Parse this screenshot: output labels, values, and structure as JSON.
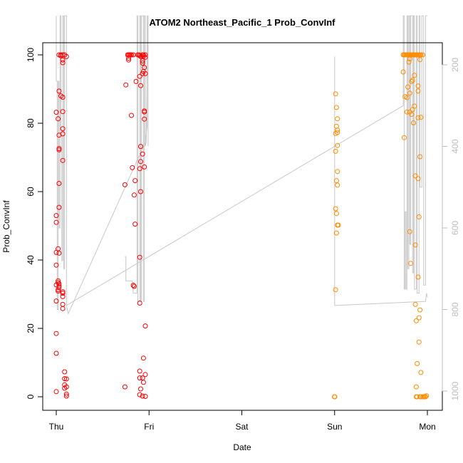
{
  "chart_data": {
    "type": "scatter",
    "title": "ATOM2 Northeast_Pacific_1 Prob_ConvInf",
    "xlabel": "Date",
    "ylabel": "Prob_ConvInf",
    "x_unit": "days since Thu 00:00",
    "xlim": [
      0,
      4
    ],
    "ylim": [
      0,
      100
    ],
    "x_ticks": [
      {
        "value": 0,
        "label": "Thu"
      },
      {
        "value": 1,
        "label": "Fri"
      },
      {
        "value": 2,
        "label": "Sat"
      },
      {
        "value": 3,
        "label": "Sun"
      },
      {
        "value": 4,
        "label": "Mon"
      }
    ],
    "y_ticks": [
      0,
      20,
      40,
      60,
      80,
      100
    ],
    "y2_ticks": [
      200,
      400,
      600,
      800,
      1000
    ],
    "y2lim": [
      1000,
      200
    ],
    "colors": {
      "red": "#ff0000",
      "orange": "#ff8c00",
      "line": "#c8c8c8",
      "axis": "#000000",
      "right_axis": "#bdbdbd"
    },
    "series": [
      {
        "name": "Thu",
        "color": "#ff0000",
        "points": [
          [
            0.0,
            83.2
          ],
          [
            0.0,
            53
          ],
          [
            0.0,
            51
          ],
          [
            0.0,
            42.2
          ],
          [
            0.0,
            38.5
          ],
          [
            0.0,
            32.7
          ],
          [
            0.0,
            28
          ],
          [
            0.0,
            18.5
          ],
          [
            0.0,
            12.7
          ],
          [
            0.0,
            1.5
          ],
          [
            0.02,
            81.3
          ],
          [
            0.02,
            43.3
          ],
          [
            0.02,
            33.9
          ],
          [
            0.02,
            33.4
          ],
          [
            0.02,
            31.3
          ],
          [
            0.02,
            30.9
          ],
          [
            0.03,
            100
          ],
          [
            0.03,
            89.4
          ],
          [
            0.03,
            76.5
          ],
          [
            0.03,
            72.6
          ],
          [
            0.03,
            72.2
          ],
          [
            0.03,
            62.4
          ],
          [
            0.03,
            55.4
          ],
          [
            0.03,
            42
          ],
          [
            0.03,
            33
          ],
          [
            0.03,
            32.4
          ],
          [
            0.03,
            31.9
          ],
          [
            0.05,
            100
          ],
          [
            0.05,
            88
          ],
          [
            0.05,
            99.7
          ],
          [
            0.07,
            100
          ],
          [
            0.07,
            98.5
          ],
          [
            0.07,
            97.7
          ],
          [
            0.07,
            87.6
          ],
          [
            0.07,
            83.4
          ],
          [
            0.07,
            78.4
          ],
          [
            0.07,
            76.9
          ],
          [
            0.07,
            69.1
          ],
          [
            0.07,
            30.7
          ],
          [
            0.07,
            30.3
          ],
          [
            0.07,
            29.3
          ],
          [
            0.07,
            27
          ],
          [
            0.07,
            25.8
          ],
          [
            0.09,
            100
          ],
          [
            0.09,
            7.3
          ],
          [
            0.09,
            5.3
          ],
          [
            0.09,
            3.5
          ],
          [
            0.09,
            2.5
          ],
          [
            0.11,
            99.5
          ],
          [
            0.11,
            5.2
          ],
          [
            0.11,
            2.9
          ],
          [
            0.11,
            0.8
          ],
          [
            0.11,
            0.2
          ]
        ]
      },
      {
        "name": "Fri",
        "color": "#ff0000",
        "points": [
          [
            0.74,
            62
          ],
          [
            0.74,
            2.9
          ],
          [
            0.75,
            91.2
          ],
          [
            0.77,
            100
          ],
          [
            0.78,
            100
          ],
          [
            0.79,
            100
          ],
          [
            0.8,
            100
          ],
          [
            0.81,
            100
          ],
          [
            0.83,
            100
          ],
          [
            0.78,
            99
          ],
          [
            0.78,
            98.5
          ],
          [
            0.81,
            82.3
          ],
          [
            0.82,
            67
          ],
          [
            0.83,
            32.6
          ],
          [
            0.84,
            32.3
          ],
          [
            0.84,
            59
          ],
          [
            0.85,
            50.5
          ],
          [
            0.85,
            63.2
          ],
          [
            0.86,
            92.2
          ],
          [
            0.88,
            100
          ],
          [
            0.89,
            100
          ],
          [
            0.9,
            99.8
          ],
          [
            0.9,
            93.7
          ],
          [
            0.9,
            66.7
          ],
          [
            0.9,
            40.8
          ],
          [
            0.9,
            27.4
          ],
          [
            0.9,
            7.5
          ],
          [
            0.9,
            5.5
          ],
          [
            0.9,
            0.6
          ],
          [
            0.91,
            99.5
          ],
          [
            0.91,
            91
          ],
          [
            0.91,
            73.2
          ],
          [
            0.91,
            68.8
          ],
          [
            0.91,
            60
          ],
          [
            0.91,
            2.3
          ],
          [
            0.93,
            100
          ],
          [
            0.93,
            98.2
          ],
          [
            0.93,
            97.6
          ],
          [
            0.93,
            94.5
          ],
          [
            0.93,
            71
          ],
          [
            0.93,
            5.5
          ],
          [
            0.93,
            0.2
          ],
          [
            0.94,
            100
          ],
          [
            0.94,
            99.6
          ],
          [
            0.94,
            95.1
          ],
          [
            0.94,
            11.3
          ],
          [
            0.94,
            4.2
          ],
          [
            0.95,
            96.3
          ],
          [
            0.95,
            83.6
          ],
          [
            0.95,
            83.3
          ],
          [
            0.95,
            81.2
          ],
          [
            0.95,
            67.2
          ],
          [
            0.96,
            100
          ],
          [
            0.96,
            99.3
          ],
          [
            0.96,
            94.5
          ],
          [
            0.96,
            20.7
          ],
          [
            0.96,
            6.5
          ],
          [
            0.96,
            0.1
          ]
        ]
      },
      {
        "name": "Sun",
        "color": "#ff8c00",
        "points": [
          [
            2.998,
            0
          ],
          [
            3.0,
            0
          ],
          [
            3.002,
            0
          ],
          [
            3.01,
            88.6
          ],
          [
            3.01,
            77
          ],
          [
            3.01,
            71.8
          ],
          [
            3.01,
            55
          ],
          [
            3.01,
            31.3
          ],
          [
            3.02,
            84.6
          ],
          [
            3.02,
            79.1
          ],
          [
            3.02,
            63.2
          ],
          [
            3.02,
            53.6
          ],
          [
            3.02,
            47.9
          ],
          [
            3.03,
            81.3
          ],
          [
            3.03,
            78
          ],
          [
            3.03,
            77.3
          ],
          [
            3.03,
            73.5
          ],
          [
            3.03,
            65.9
          ],
          [
            3.03,
            61.9
          ],
          [
            3.03,
            50.2
          ],
          [
            3.04,
            50.2
          ]
        ]
      },
      {
        "name": "Mon",
        "color": "#ff8c00",
        "points": [
          [
            3.74,
            100
          ],
          [
            3.75,
            100
          ],
          [
            3.76,
            100
          ],
          [
            3.77,
            100
          ],
          [
            3.78,
            100
          ],
          [
            3.79,
            100
          ],
          [
            3.8,
            100
          ],
          [
            3.81,
            100
          ],
          [
            3.82,
            100
          ],
          [
            3.83,
            100
          ],
          [
            3.84,
            100
          ],
          [
            3.85,
            100
          ],
          [
            3.86,
            100
          ],
          [
            3.87,
            100
          ],
          [
            3.88,
            100
          ],
          [
            3.89,
            100
          ],
          [
            3.9,
            100
          ],
          [
            3.91,
            100
          ],
          [
            3.92,
            100
          ],
          [
            3.93,
            100
          ],
          [
            3.95,
            100
          ],
          [
            3.74,
            95
          ],
          [
            3.75,
            75.8
          ],
          [
            3.76,
            87.8
          ],
          [
            3.78,
            87.5
          ],
          [
            3.78,
            83.3
          ],
          [
            3.79,
            90.6
          ],
          [
            3.8,
            97.9
          ],
          [
            3.81,
            98.8
          ],
          [
            3.81,
            88.8
          ],
          [
            3.81,
            83.3
          ],
          [
            3.81,
            48.3
          ],
          [
            3.82,
            39
          ],
          [
            3.83,
            92.2
          ],
          [
            3.83,
            82.6
          ],
          [
            3.84,
            92.6
          ],
          [
            3.84,
            84
          ],
          [
            3.85,
            80.1
          ],
          [
            3.86,
            94
          ],
          [
            3.86,
            85
          ],
          [
            3.87,
            64.6
          ],
          [
            3.87,
            44.4
          ],
          [
            3.87,
            27
          ],
          [
            3.88,
            22.2
          ],
          [
            3.88,
            2.9
          ],
          [
            3.88,
            0
          ],
          [
            3.89,
            9.7
          ],
          [
            3.89,
            0
          ],
          [
            3.9,
            90.9
          ],
          [
            3.9,
            89.4
          ],
          [
            3.9,
            81.6
          ],
          [
            3.9,
            63.8
          ],
          [
            3.9,
            35
          ],
          [
            3.91,
            52.6
          ],
          [
            3.91,
            23.1
          ],
          [
            3.91,
            16
          ],
          [
            3.92,
            98.6
          ],
          [
            3.92,
            70.2
          ],
          [
            3.92,
            25.4
          ],
          [
            3.92,
            0
          ],
          [
            3.93,
            81.7
          ],
          [
            3.93,
            7.1
          ],
          [
            3.93,
            0
          ],
          [
            3.95,
            0
          ],
          [
            3.96,
            0
          ],
          [
            3.97,
            0
          ],
          [
            3.98,
            0
          ],
          [
            3.99,
            0.3
          ]
        ]
      }
    ],
    "depth_line": {
      "color": "#c8c8c8",
      "axis": "right",
      "segments": [
        [
          [
            0.0,
            80
          ],
          [
            0.0,
            240
          ],
          [
            0.01,
            240
          ],
          [
            0.01,
            800
          ],
          [
            0.02,
            800
          ],
          [
            0.02,
            240
          ],
          [
            0.03,
            240
          ],
          [
            0.03,
            600
          ],
          [
            0.04,
            600
          ],
          [
            0.04,
            80
          ],
          [
            0.05,
            80
          ],
          [
            0.05,
            360
          ],
          [
            0.06,
            360
          ],
          [
            0.06,
            680
          ],
          [
            0.07,
            680
          ],
          [
            0.07,
            80
          ],
          [
            0.08,
            80
          ],
          [
            0.08,
            700
          ],
          [
            0.09,
            700
          ],
          [
            0.09,
            80
          ],
          [
            0.11,
            80
          ],
          [
            0.11,
            790
          ],
          [
            0.13,
            810
          ],
          [
            0.96,
            390
          ],
          [
            0.98,
            350
          ],
          [
            0.98,
            80
          ],
          [
            0.99,
            80
          ],
          [
            0.99,
            400
          ]
        ],
        [
          [
            0.74,
            670
          ],
          [
            0.75,
            670
          ],
          [
            0.75,
            730
          ],
          [
            0.78,
            730
          ],
          [
            0.82,
            730
          ],
          [
            0.83,
            760
          ],
          [
            0.85,
            760
          ],
          [
            0.87,
            760
          ],
          [
            0.87,
            80
          ],
          [
            0.88,
            80
          ],
          [
            0.88,
            780
          ],
          [
            0.9,
            780
          ],
          [
            0.9,
            80
          ],
          [
            0.91,
            80
          ],
          [
            0.91,
            780
          ],
          [
            0.92,
            780
          ],
          [
            0.92,
            80
          ],
          [
            0.94,
            80
          ],
          [
            0.94,
            780
          ],
          [
            0.95,
            780
          ],
          [
            0.95,
            80
          ],
          [
            0.96,
            80
          ],
          [
            0.96,
            400
          ],
          [
            0.97,
            390
          ],
          [
            0.99,
            80
          ]
        ],
        [
          [
            0.11,
            790
          ],
          [
            3.74,
            300
          ]
        ],
        [
          [
            3.0,
            180
          ],
          [
            3.0,
            790
          ],
          [
            3.02,
            790
          ],
          [
            3.98,
            780
          ],
          [
            3.99,
            760
          ],
          [
            4.0,
            770
          ]
        ],
        [
          [
            3.74,
            300
          ],
          [
            3.74,
            80
          ],
          [
            3.75,
            80
          ],
          [
            3.75,
            750
          ],
          [
            3.76,
            750
          ],
          [
            3.76,
            560
          ],
          [
            3.77,
            560
          ],
          [
            3.77,
            750
          ],
          [
            3.78,
            750
          ],
          [
            3.78,
            80
          ],
          [
            3.79,
            80
          ],
          [
            3.79,
            700
          ],
          [
            3.8,
            700
          ],
          [
            3.8,
            80
          ],
          [
            3.81,
            80
          ],
          [
            3.81,
            640
          ],
          [
            3.82,
            640
          ],
          [
            3.82,
            80
          ],
          [
            3.84,
            80
          ],
          [
            3.84,
            710
          ],
          [
            3.85,
            710
          ],
          [
            3.85,
            80
          ],
          [
            3.86,
            80
          ],
          [
            3.86,
            750
          ],
          [
            3.88,
            750
          ],
          [
            3.88,
            80
          ],
          [
            3.89,
            80
          ],
          [
            3.89,
            760
          ],
          [
            3.91,
            760
          ],
          [
            3.91,
            80
          ],
          [
            3.92,
            80
          ],
          [
            3.92,
            500
          ],
          [
            3.94,
            500
          ],
          [
            3.94,
            80
          ],
          [
            3.96,
            80
          ],
          [
            3.96,
            740
          ],
          [
            3.98,
            740
          ],
          [
            3.98,
            80
          ],
          [
            4.0,
            80
          ]
        ]
      ]
    }
  }
}
